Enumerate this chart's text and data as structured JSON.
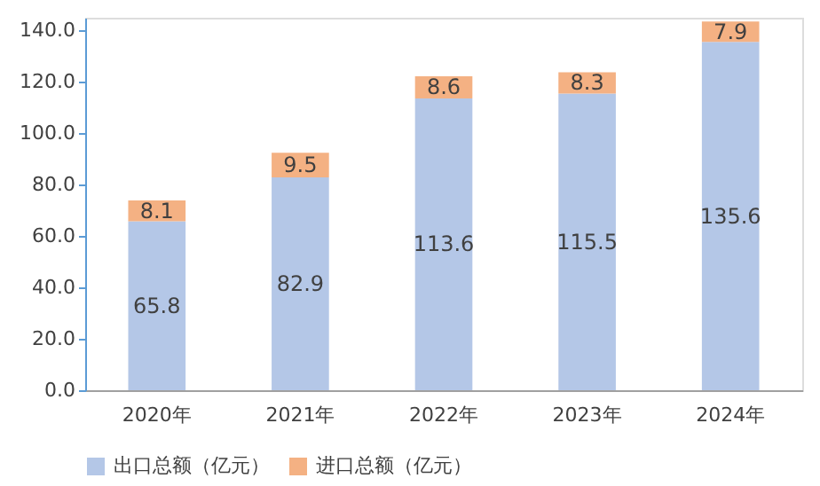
{
  "chart_data": {
    "type": "bar",
    "stacked": true,
    "categories": [
      "2020年",
      "2021年",
      "2022年",
      "2023年",
      "2024年"
    ],
    "series": [
      {
        "name": "出口总额（亿元）",
        "color": "#b4c7e7",
        "values": [
          65.8,
          82.9,
          113.6,
          115.5,
          135.6
        ]
      },
      {
        "name": "进口总额（亿元）",
        "color": "#f4b183",
        "values": [
          8.1,
          9.5,
          8.6,
          8.3,
          7.9
        ]
      }
    ],
    "ylim": [
      0,
      145
    ],
    "yticks": [
      {
        "value": 0,
        "label": "0.0"
      },
      {
        "value": 20,
        "label": "20.0"
      },
      {
        "value": 40,
        "label": "40.0"
      },
      {
        "value": 60,
        "label": "60.0"
      },
      {
        "value": 80,
        "label": "80.0"
      },
      {
        "value": 100,
        "label": "100.0"
      },
      {
        "value": 120,
        "label": "120.0"
      },
      {
        "value": 140,
        "label": "140.0"
      }
    ],
    "data_labels": true,
    "grid": false,
    "legend": "bottom"
  }
}
